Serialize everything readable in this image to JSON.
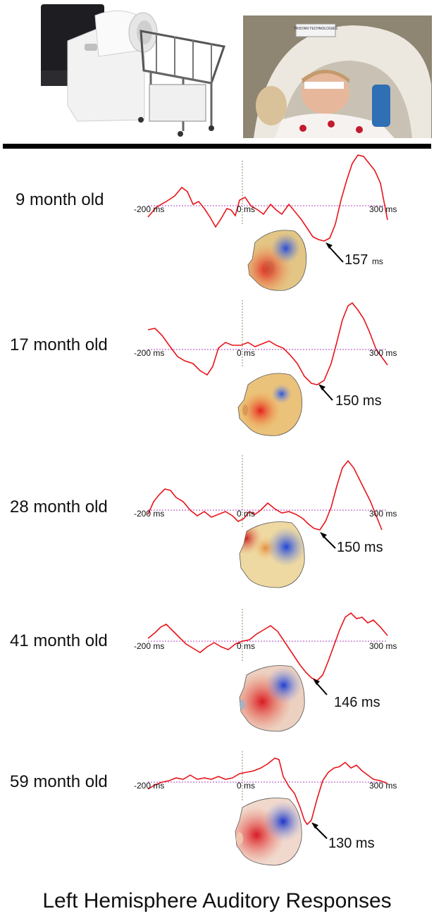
{
  "title": "Left Hemisphere Auditory Responses",
  "photo_labels": {
    "scanner_brand": "TRISTAN TECHNOLOGIES"
  },
  "panels": [
    {
      "age_label": "9 month old",
      "tick_left": "-200 ms",
      "tick_mid": "0 ms",
      "tick_right": "300 ms",
      "peak_value": "157",
      "peak_unit": "ms"
    },
    {
      "age_label": "17 month old",
      "tick_left": "-200 ms",
      "tick_mid": "0 ms",
      "tick_right": "300 ms",
      "peak_value": "150 ms",
      "peak_unit": ""
    },
    {
      "age_label": "28 month old",
      "tick_left": "-200 ms",
      "tick_mid": "0 ms",
      "tick_right": "300 ms",
      "peak_value": "150 ms",
      "peak_unit": ""
    },
    {
      "age_label": "41 month old",
      "tick_left": "-200 ms",
      "tick_mid": "0 ms",
      "tick_right": "300 ms",
      "peak_value": "146 ms",
      "peak_unit": ""
    },
    {
      "age_label": "59 month old",
      "tick_left": "-200 ms",
      "tick_mid": "0 ms",
      "tick_right": "300 ms",
      "peak_value": "130 ms",
      "peak_unit": ""
    }
  ],
  "colors": {
    "waveform": "#e8141a",
    "baseline": "#b040c0",
    "stimulus_line": "#8a8a6a",
    "divider": "#000000"
  }
}
